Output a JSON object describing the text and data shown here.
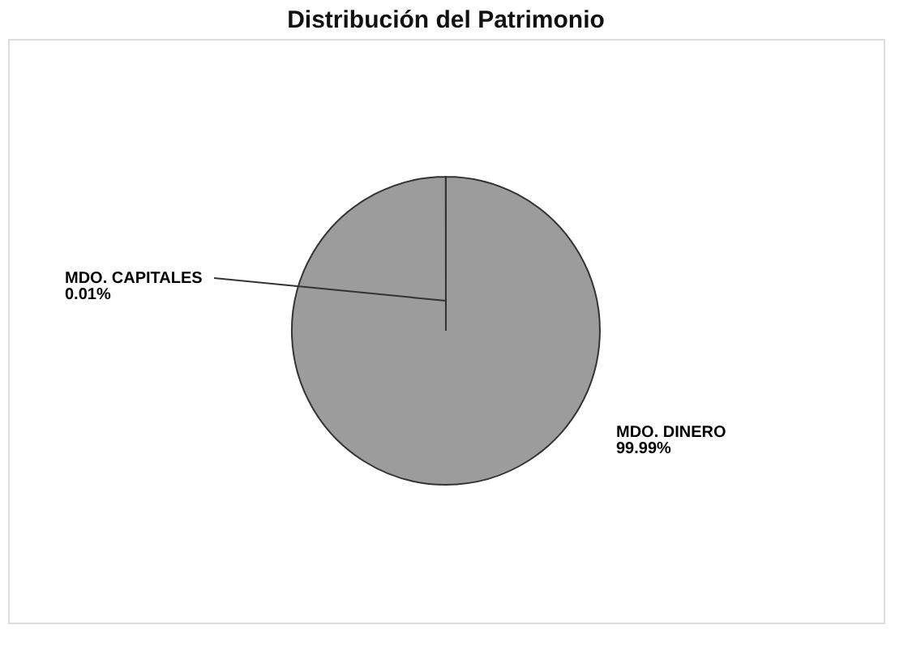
{
  "chart_data": {
    "type": "pie",
    "title": "Distribución del Patrimonio",
    "categories": [
      "MDO. DINERO",
      "MDO. CAPITALES"
    ],
    "values": [
      99.99,
      0.01
    ],
    "colors": [
      "#9c9c9c",
      "#9c9c9c"
    ],
    "value_labels": [
      "99.99%",
      "0.01%"
    ],
    "legend": false
  }
}
